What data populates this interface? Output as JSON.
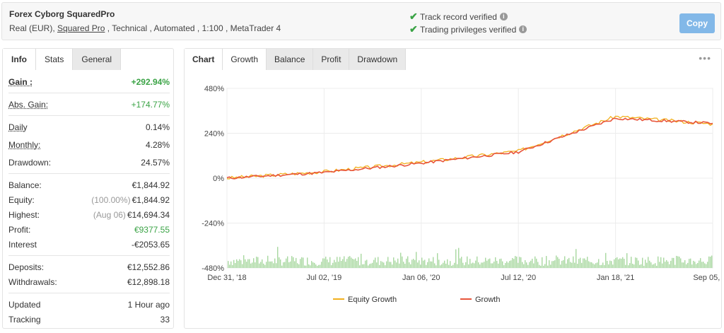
{
  "header": {
    "title": "Forex Cyborg SquaredPro",
    "sub_prefix": "Real (EUR), ",
    "sub_link": "Squared Pro",
    "sub_suffix": " , Technical , Automated , 1:100 , MetaTrader 4",
    "verified_1": "Track record verified",
    "verified_2": "Trading privileges verified",
    "copy_label": "Copy"
  },
  "left_tabs": [
    "Info",
    "Stats",
    "General"
  ],
  "stats": {
    "gain_label": "Gain :",
    "gain_value": "+292.94%",
    "abs_gain_label": "Abs. Gain:",
    "abs_gain_value": "+174.77%",
    "daily_label": "Daily",
    "daily_value": "0.14%",
    "monthly_label": "Monthly:",
    "monthly_value": "4.28%",
    "drawdown_label": "Drawdown:",
    "drawdown_value": "24.57%",
    "balance_label": "Balance:",
    "balance_value": "€1,844.92",
    "equity_label": "Equity:",
    "equity_pct": "(100.00%)",
    "equity_value": "€1,844.92",
    "highest_label": "Highest:",
    "highest_date": "(Aug 06)",
    "highest_value": "€14,694.34",
    "profit_label": "Profit:",
    "profit_value": "€9377.55",
    "interest_label": "Interest",
    "interest_value": "-€2053.65",
    "deposits_label": "Deposits:",
    "deposits_value": "€12,552.86",
    "withdrawals_label": "Withdrawals:",
    "withdrawals_value": "€12,898.18",
    "updated_label": "Updated",
    "updated_value": "1 Hour ago",
    "tracking_label": "Tracking",
    "tracking_value": "33"
  },
  "chart_tabs": [
    "Chart",
    "Growth",
    "Balance",
    "Profit",
    "Drawdown"
  ],
  "colors": {
    "growth": "#e8553b",
    "equity_growth": "#f2b01e",
    "volume": "#a8d8a0",
    "accent": "#82b8e8",
    "green": "#3aa345"
  },
  "chart_data": {
    "type": "line",
    "y_ticks": [
      "480%",
      "240%",
      "0%",
      "-240%",
      "-480%"
    ],
    "ylim": [
      -480,
      480
    ],
    "x_ticks": [
      "Dec 31, '18",
      "Jul 02, '19",
      "Jan 06, '20",
      "Jul 12, '20",
      "Jan 18, '21",
      "Sep 05, '21"
    ],
    "series": [
      {
        "name": "Equity Growth",
        "x": [
          "Dec 31, '18",
          "Jul 02, '19",
          "Jan 06, '20",
          "Jul 12, '20",
          "Jan 18, '21",
          "Sep 05, '21"
        ],
        "y": [
          0,
          35,
          85,
          145,
          330,
          290
        ]
      },
      {
        "name": "Growth",
        "x": [
          "Dec 31, '18",
          "Jul 02, '19",
          "Jan 06, '20",
          "Jul 12, '20",
          "Jan 18, '21",
          "Sep 05, '21"
        ],
        "y": [
          0,
          30,
          80,
          140,
          320,
          293
        ]
      }
    ],
    "legend_position": "bottom"
  }
}
